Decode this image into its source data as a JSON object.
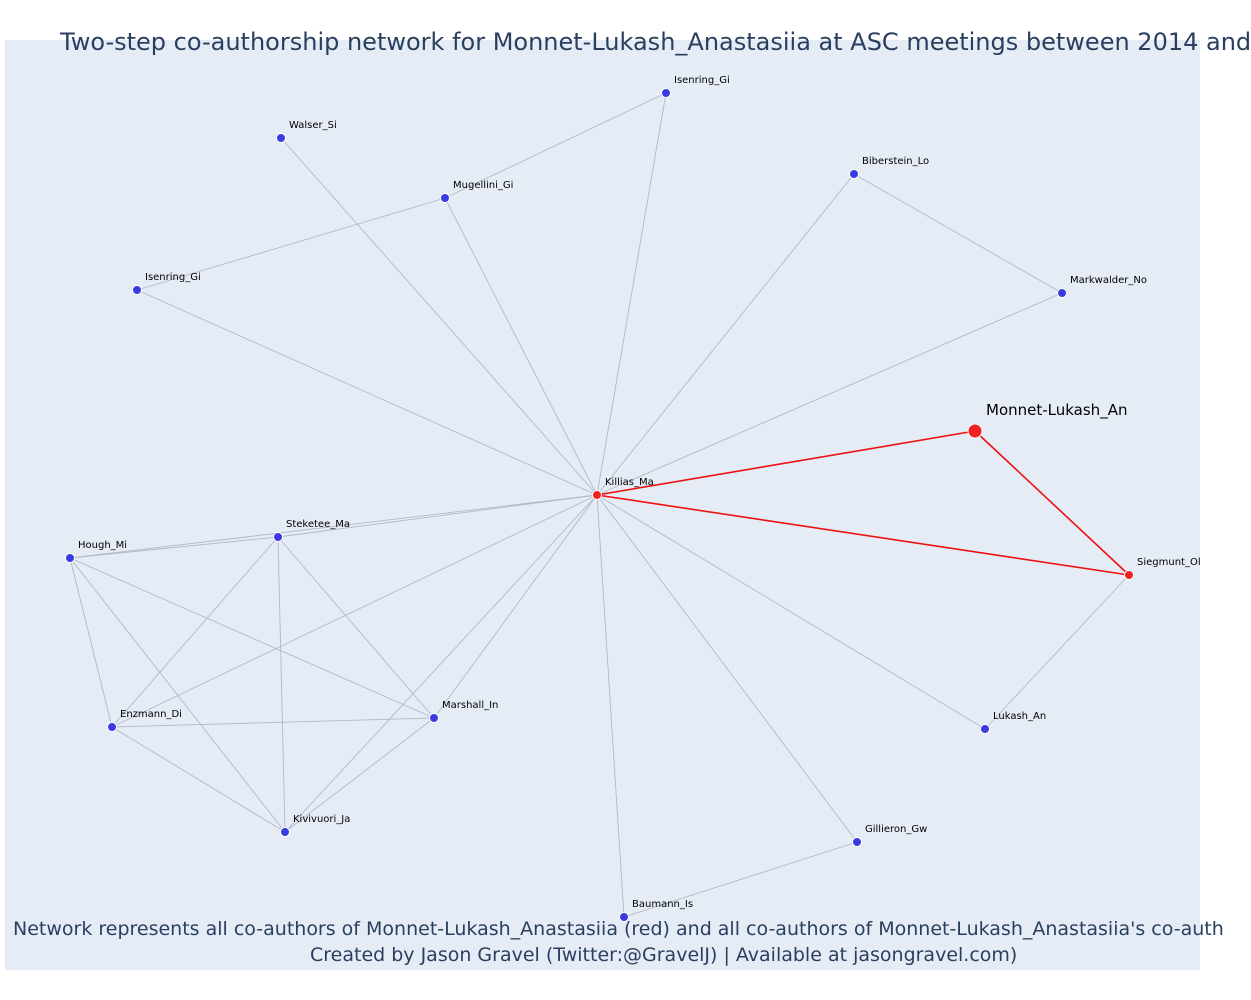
{
  "title": "Two-step co-authorship network for Monnet-Lukash_Anastasiia at ASC meetings between 2014 and",
  "caption_line1": "Network represents all co-authors of Monnet-Lukash_Anastasiia (red) and all co-authors of Monnet-Lukash_Anastasiia's co-auth",
  "caption_line2": "Created by Jason Gravel (Twitter:@GravelJ) | Available at jasongravel.com)",
  "colors": {
    "background": "#e5ecf6",
    "edge_default": "#b3b8c8",
    "edge_focus": "#ee1111",
    "node_default": "#3a3ae0",
    "node_focus": "#ee2222",
    "text": "#2a3f5f"
  },
  "nodes": [
    {
      "id": "Killias_Ma",
      "label": "Killias_Ma",
      "group": "focus"
    },
    {
      "id": "Monnet-Lukash_An",
      "label": "Monnet-Lukash_An",
      "group": "ego"
    },
    {
      "id": "Siegmunt_Ol",
      "label": "Siegmunt_Ol",
      "group": "focus"
    },
    {
      "id": "Isenring_Gi_top",
      "label": "Isenring_Gi",
      "group": "other"
    },
    {
      "id": "Walser_Si",
      "label": "Walser_Si",
      "group": "other"
    },
    {
      "id": "Mugellini_Gi",
      "label": "Mugellini_Gi",
      "group": "other"
    },
    {
      "id": "Biberstein_Lo",
      "label": "Biberstein_Lo",
      "group": "other"
    },
    {
      "id": "Isenring_Gi_left",
      "label": "Isenring_Gi",
      "group": "other"
    },
    {
      "id": "Markwalder_No",
      "label": "Markwalder_No",
      "group": "other"
    },
    {
      "id": "Steketee_Ma",
      "label": "Steketee_Ma",
      "group": "other"
    },
    {
      "id": "Hough_Mi",
      "label": "Hough_Mi",
      "group": "other"
    },
    {
      "id": "Enzmann_Di",
      "label": "Enzmann_Di",
      "group": "other"
    },
    {
      "id": "Marshall_In",
      "label": "Marshall_In",
      "group": "other"
    },
    {
      "id": "Lukash_An",
      "label": "Lukash_An",
      "group": "other"
    },
    {
      "id": "Kivivuori_Ja",
      "label": "Kivivuori_Ja",
      "group": "other"
    },
    {
      "id": "Gillieron_Gw",
      "label": "Gillieron_Gw",
      "group": "other"
    },
    {
      "id": "Baumann_Is",
      "label": "Baumann_Is",
      "group": "other"
    }
  ],
  "edges": [
    [
      "Killias_Ma",
      "Monnet-Lukash_An",
      "focus"
    ],
    [
      "Killias_Ma",
      "Siegmunt_Ol",
      "focus"
    ],
    [
      "Monnet-Lukash_An",
      "Siegmunt_Ol",
      "focus"
    ],
    [
      "Killias_Ma",
      "Isenring_Gi_top",
      "other"
    ],
    [
      "Killias_Ma",
      "Walser_Si",
      "other"
    ],
    [
      "Killias_Ma",
      "Mugellini_Gi",
      "other"
    ],
    [
      "Killias_Ma",
      "Biberstein_Lo",
      "other"
    ],
    [
      "Killias_Ma",
      "Isenring_Gi_left",
      "other"
    ],
    [
      "Killias_Ma",
      "Markwalder_No",
      "other"
    ],
    [
      "Killias_Ma",
      "Steketee_Ma",
      "other"
    ],
    [
      "Killias_Ma",
      "Hough_Mi",
      "other"
    ],
    [
      "Killias_Ma",
      "Enzmann_Di",
      "other"
    ],
    [
      "Killias_Ma",
      "Marshall_In",
      "other"
    ],
    [
      "Killias_Ma",
      "Kivivuori_Ja",
      "other"
    ],
    [
      "Killias_Ma",
      "Lukash_An",
      "other"
    ],
    [
      "Killias_Ma",
      "Gillieron_Gw",
      "other"
    ],
    [
      "Killias_Ma",
      "Baumann_Is",
      "other"
    ],
    [
      "Isenring_Gi_top",
      "Mugellini_Gi",
      "other"
    ],
    [
      "Mugellini_Gi",
      "Isenring_Gi_left",
      "other"
    ],
    [
      "Biberstein_Lo",
      "Markwalder_No",
      "other"
    ],
    [
      "Siegmunt_Ol",
      "Lukash_An",
      "other"
    ],
    [
      "Gillieron_Gw",
      "Baumann_Is",
      "other"
    ],
    [
      "Hough_Mi",
      "Steketee_Ma",
      "other"
    ],
    [
      "Hough_Mi",
      "Enzmann_Di",
      "other"
    ],
    [
      "Hough_Mi",
      "Marshall_In",
      "other"
    ],
    [
      "Hough_Mi",
      "Kivivuori_Ja",
      "other"
    ],
    [
      "Steketee_Ma",
      "Enzmann_Di",
      "other"
    ],
    [
      "Steketee_Ma",
      "Marshall_In",
      "other"
    ],
    [
      "Steketee_Ma",
      "Kivivuori_Ja",
      "other"
    ],
    [
      "Enzmann_Di",
      "Marshall_In",
      "other"
    ],
    [
      "Enzmann_Di",
      "Kivivuori_Ja",
      "other"
    ],
    [
      "Marshall_In",
      "Kivivuori_Ja",
      "other"
    ]
  ]
}
